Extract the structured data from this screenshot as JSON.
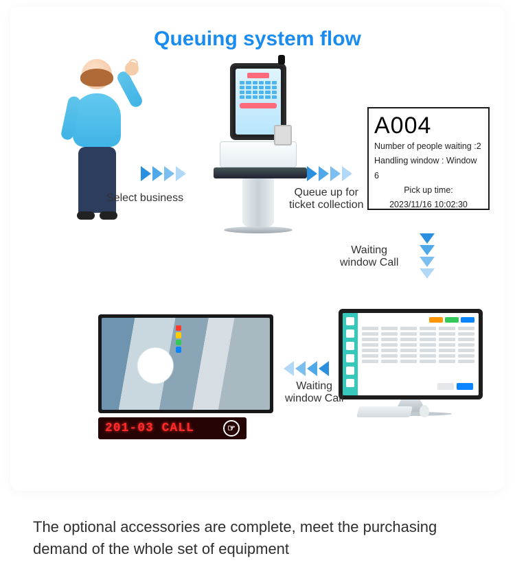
{
  "title": "Queuing system flow",
  "accent_color": "#1a8cf0",
  "arrow_colors": [
    "#2b8fe0",
    "#4fa8e8",
    "#7bbef0",
    "#b1d9f7"
  ],
  "steps": {
    "s1": {
      "caption": "Select business"
    },
    "s2": {
      "caption": "Queue up for\nticket collection"
    },
    "s3": {
      "ticket_number": "A004",
      "waiting_line": "Number of people waiting :2",
      "window_line": "Handling window : Window 6",
      "pickup_label": "Pick up time:",
      "pickup_time": "2023/11/16 10:02:30"
    },
    "s4": {
      "caption": "Waiting\nwindow Call"
    },
    "s5": {
      "caption": "Waiting\nwindow Call"
    },
    "s6": {
      "led_text": "201-03 CALL",
      "led_text_color": "#ff2a2a",
      "led_bg": "#260404",
      "stack_colors": [
        "#ff3b30",
        "#ffcc00",
        "#34c759",
        "#0a84ff"
      ]
    }
  },
  "monitor": {
    "sidebar_color": "#36c9bb",
    "pill_colors": [
      "#ff9500",
      "#34c759",
      "#0a84ff"
    ],
    "cta_colors": [
      "#e5e7ea",
      "#0a84ff"
    ],
    "table_rows": 7,
    "table_cols": 6
  },
  "footer": "The optional accessories are complete, meet the purchasing demand of the whole set of equipment"
}
